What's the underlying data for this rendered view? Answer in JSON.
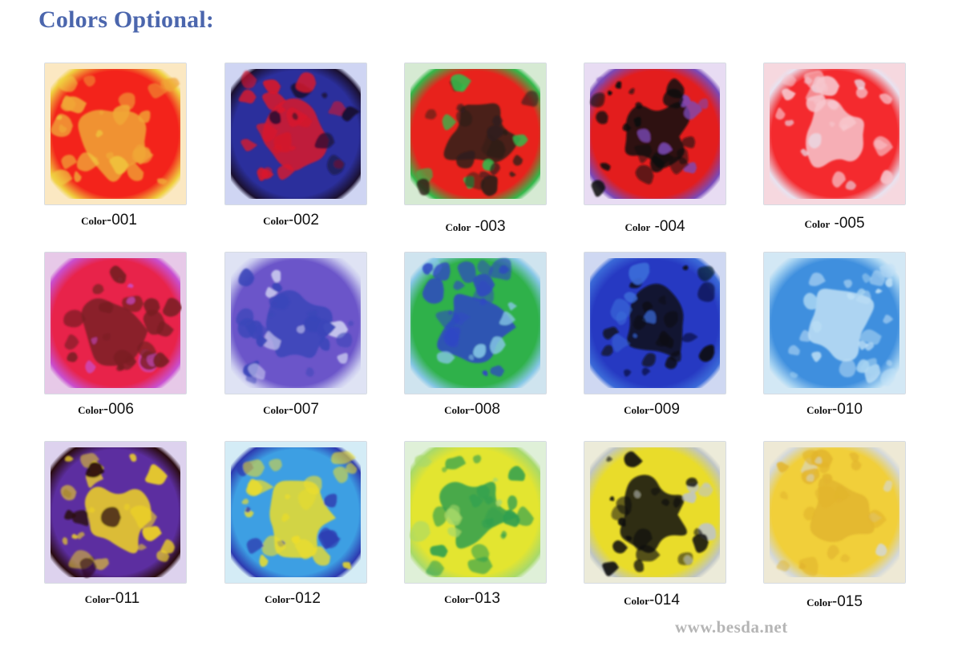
{
  "title": "Colors Optional:",
  "website": "www.besda.net",
  "swatches": [
    {
      "word": "Color",
      "sep": "-",
      "code": "001",
      "ground": "#fbe8c2",
      "base": "#f3231b",
      "blob": "#f0a636",
      "edge": "#f0d040"
    },
    {
      "word": "Color",
      "sep": "-",
      "code": "002",
      "ground": "#cfd5f3",
      "base": "#2b2f9c",
      "blob": "#d9182a",
      "edge": "#1a1030"
    },
    {
      "word": "Color",
      "sep": " -",
      "code": "003",
      "ground": "#d6ead3",
      "base": "#e8221c",
      "blob": "#2e1f1a",
      "edge": "#34b84a"
    },
    {
      "word": "Color",
      "sep": " -",
      "code": "004",
      "ground": "#e8dcf3",
      "base": "#e31d1d",
      "blob": "#0f0f10",
      "edge": "#7a4ab8"
    },
    {
      "word": "Color",
      "sep": " -",
      "code": "005",
      "ground": "#f6d8df",
      "base": "#f42a2e",
      "blob": "#f7c6cd",
      "edge": "#e8e2ef"
    },
    {
      "word": "Color",
      "sep": "-",
      "code": "006",
      "ground": "#e7c9e8",
      "base": "#e8234a",
      "blob": "#7a1f24",
      "edge": "#c94fcf"
    },
    {
      "word": "Color",
      "sep": "-",
      "code": "007",
      "ground": "#dfe3f4",
      "base": "#6b55c9",
      "blob": "#3a46b9",
      "edge": "#c8c8ee"
    },
    {
      "word": "Color",
      "sep": "-",
      "code": "008",
      "ground": "#cfe4ef",
      "base": "#2fb14a",
      "blob": "#2f47c4",
      "edge": "#86c7e6"
    },
    {
      "word": "Color",
      "sep": "-",
      "code": "009",
      "ground": "#cfd8f2",
      "base": "#2639c2",
      "blob": "#0a0b14",
      "edge": "#3b6ad8"
    },
    {
      "word": "Color",
      "sep": "-",
      "code": "010",
      "ground": "#d3e8f5",
      "base": "#3f8fde",
      "blob": "#bfe0f6",
      "edge": "#a8d4f2"
    },
    {
      "word": "Color",
      "sep": "-",
      "code": "011",
      "ground": "#ddd2ee",
      "base": "#5c2ea0",
      "blob": "#f1d524",
      "edge": "#2a0b10"
    },
    {
      "word": "Color",
      "sep": "-",
      "code": "012",
      "ground": "#d4ecf6",
      "base": "#3d9fe3",
      "blob": "#ecdd2a",
      "edge": "#2d3ab0"
    },
    {
      "word": "Color",
      "sep": "-",
      "code": "013",
      "ground": "#dff0d8",
      "base": "#e3e530",
      "blob": "#2f9f4f",
      "edge": "#a8d96a"
    },
    {
      "word": "Color",
      "sep": "-",
      "code": "014",
      "ground": "#ecebd9",
      "base": "#e9dc2a",
      "blob": "#101010",
      "edge": "#bfc5c4"
    },
    {
      "word": "Color",
      "sep": "-",
      "code": "015",
      "ground": "#eee9d5",
      "base": "#f1cf3a",
      "blob": "#e2b52d",
      "edge": "#d4d8d8"
    }
  ]
}
